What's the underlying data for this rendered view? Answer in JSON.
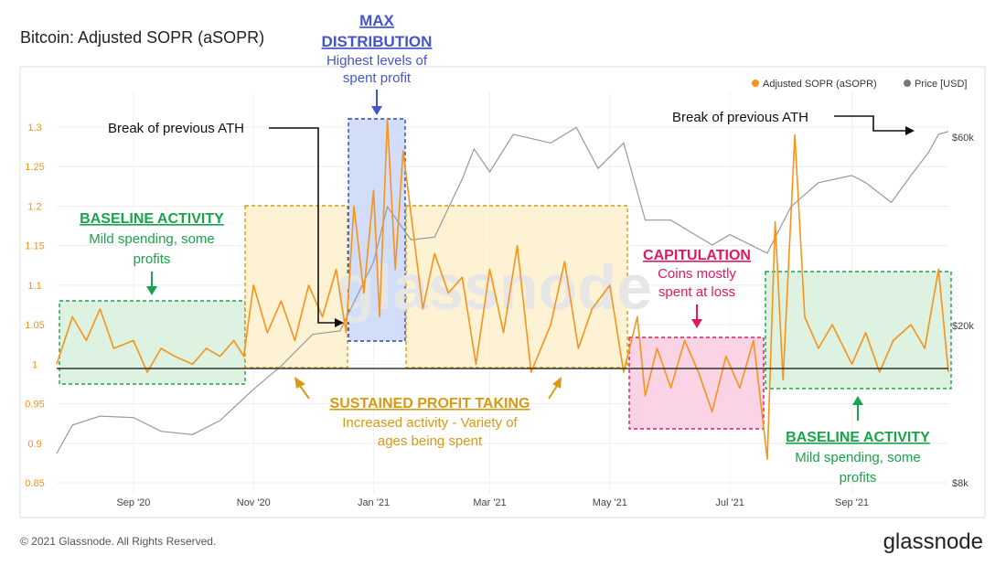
{
  "page": {
    "title": "Bitcoin: Adjusted SOPR (aSOPR)",
    "copyright": "© 2021 Glassnode. All Rights Reserved.",
    "brand": "glassnode",
    "watermark": "glassnode"
  },
  "colors": {
    "sopr": "#f7931a",
    "price": "#999999",
    "baseline_line": "#333333",
    "green": "#1aa34a",
    "green_fill": "#d7f0dc",
    "orange_text": "#d89a12",
    "orange_fill": "#fdf0cd",
    "blue_text": "#4455cc",
    "blue_fill": "#cdd9f7",
    "pink_text": "#e0195e",
    "pink_fill": "#f9cde0",
    "annotation_black": "#111111"
  },
  "legend": [
    {
      "label": "Adjusted SOPR (aSOPR)",
      "color": "#f7931a"
    },
    {
      "label": "Price [USD]",
      "color": "#777777"
    }
  ],
  "chart_data": {
    "type": "line",
    "x_ticks": [
      "Sep '20",
      "Nov '20",
      "Jan '21",
      "Mar '21",
      "May '21",
      "Jul '21",
      "Sep '21"
    ],
    "x_range": [
      "2020-07-24",
      "2021-10-20"
    ],
    "y_left_ticks": [
      "0.85",
      "0.9",
      "0.95",
      "1",
      "1.05",
      "1.1",
      "1.15",
      "1.2",
      "1.25",
      "1.3"
    ],
    "y_left_range": [
      0.85,
      1.3
    ],
    "y_right_ticks": [
      "$8k",
      "$20k",
      "$60k"
    ],
    "y_right_scale": "log",
    "grid": true,
    "legend_position": "top-right",
    "series": [
      {
        "name": "Adjusted SOPR (aSOPR)",
        "axis": "left",
        "x": [
          "2020-07-24",
          "2020-08-01",
          "2020-08-08",
          "2020-08-15",
          "2020-08-22",
          "2020-09-01",
          "2020-09-08",
          "2020-09-15",
          "2020-09-22",
          "2020-10-01",
          "2020-10-08",
          "2020-10-15",
          "2020-10-22",
          "2020-10-27",
          "2020-11-01",
          "2020-11-08",
          "2020-11-15",
          "2020-11-22",
          "2020-11-29",
          "2020-12-06",
          "2020-12-13",
          "2020-12-18",
          "2020-12-22",
          "2020-12-27",
          "2021-01-01",
          "2021-01-04",
          "2021-01-08",
          "2021-01-12",
          "2021-01-16",
          "2021-01-20",
          "2021-01-26",
          "2021-02-01",
          "2021-02-08",
          "2021-02-15",
          "2021-02-22",
          "2021-03-01",
          "2021-03-08",
          "2021-03-15",
          "2021-03-22",
          "2021-04-01",
          "2021-04-08",
          "2021-04-15",
          "2021-04-22",
          "2021-05-01",
          "2021-05-08",
          "2021-05-15",
          "2021-05-19",
          "2021-05-25",
          "2021-06-01",
          "2021-06-08",
          "2021-06-15",
          "2021-06-22",
          "2021-06-29",
          "2021-07-06",
          "2021-07-13",
          "2021-07-20",
          "2021-07-24",
          "2021-07-28",
          "2021-08-03",
          "2021-08-08",
          "2021-08-15",
          "2021-08-22",
          "2021-09-01",
          "2021-09-08",
          "2021-09-15",
          "2021-09-22",
          "2021-10-01",
          "2021-10-08",
          "2021-10-15",
          "2021-10-20"
        ],
        "y": [
          1.0,
          1.06,
          1.03,
          1.07,
          1.02,
          1.03,
          0.99,
          1.02,
          1.01,
          1.0,
          1.02,
          1.01,
          1.03,
          1.01,
          1.1,
          1.04,
          1.08,
          1.03,
          1.1,
          1.06,
          1.12,
          1.04,
          1.2,
          1.09,
          1.22,
          1.06,
          1.31,
          1.12,
          1.27,
          1.19,
          1.07,
          1.14,
          1.09,
          1.11,
          1.0,
          1.12,
          1.04,
          1.15,
          0.99,
          1.05,
          1.13,
          1.02,
          1.07,
          1.1,
          0.99,
          1.06,
          0.96,
          1.02,
          0.97,
          1.03,
          0.99,
          0.94,
          1.01,
          0.97,
          1.03,
          0.88,
          1.18,
          0.98,
          1.29,
          1.06,
          1.02,
          1.05,
          1.0,
          1.04,
          0.99,
          1.03,
          1.05,
          1.02,
          1.12,
          0.99
        ]
      },
      {
        "name": "Price [USD]",
        "axis": "right",
        "x": [
          "2020-07-24",
          "2020-08-01",
          "2020-08-15",
          "2020-09-01",
          "2020-09-15",
          "2020-10-01",
          "2020-10-15",
          "2020-11-01",
          "2020-11-15",
          "2020-12-01",
          "2020-12-15",
          "2021-01-01",
          "2021-01-08",
          "2021-01-20",
          "2021-02-01",
          "2021-02-15",
          "2021-02-21",
          "2021-03-01",
          "2021-03-13",
          "2021-04-01",
          "2021-04-14",
          "2021-04-25",
          "2021-05-08",
          "2021-05-19",
          "2021-06-01",
          "2021-06-22",
          "2021-07-01",
          "2021-07-20",
          "2021-08-01",
          "2021-08-15",
          "2021-09-01",
          "2021-09-08",
          "2021-09-21",
          "2021-10-01",
          "2021-10-10",
          "2021-10-15",
          "2021-10-20"
        ],
        "y": [
          9500,
          11200,
          11800,
          11700,
          10800,
          10600,
          11500,
          13800,
          15800,
          19000,
          19400,
          29000,
          40000,
          33000,
          33500,
          47000,
          56000,
          49000,
          61000,
          58000,
          63500,
          50000,
          58000,
          37000,
          37000,
          32000,
          34000,
          30500,
          40000,
          46000,
          48000,
          46000,
          41000,
          48000,
          55000,
          61000,
          62000
        ]
      }
    ]
  },
  "annotations": {
    "max": {
      "title1": "MAX",
      "title2": "DISTRIBUTION",
      "line1": "Highest levels of",
      "line2": "spent profit"
    },
    "baseline_left": {
      "title": "BASELINE ACTIVITY",
      "line1": "Mild spending, some",
      "line2": "profits"
    },
    "baseline_right": {
      "title": "BASELINE ACTIVITY",
      "line1": "Mild spending, some",
      "line2": "profits"
    },
    "capitulation": {
      "title": "CAPITULATION",
      "line1": "Coins mostly",
      "line2": "spent at loss"
    },
    "sustained": {
      "title": "SUSTAINED PROFIT TAKING",
      "line1": "Increased activity - Variety of",
      "line2": "ages being spent"
    },
    "ath_left": "Break of previous ATH",
    "ath_right": "Break of previous ATH"
  }
}
